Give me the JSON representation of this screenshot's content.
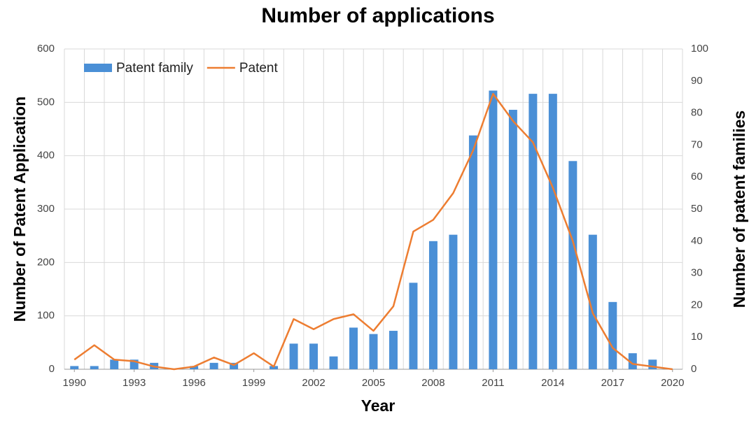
{
  "chart_data": {
    "type": "bar+line",
    "title": "Number of applications",
    "xlabel": "Year",
    "ylabel": "Number of Patent Application",
    "y2label": "Number of patent families",
    "x": [
      1990,
      1991,
      1992,
      1993,
      1994,
      1995,
      1996,
      1997,
      1998,
      1999,
      2000,
      2001,
      2002,
      2003,
      2004,
      2005,
      2006,
      2007,
      2008,
      2009,
      2010,
      2011,
      2012,
      2013,
      2014,
      2015,
      2016,
      2017,
      2018,
      2019,
      2020
    ],
    "xlim": [
      1989.5,
      2020.5
    ],
    "xticks": [
      1990,
      1993,
      1996,
      1999,
      2002,
      2005,
      2008,
      2011,
      2014,
      2017,
      2020
    ],
    "ylim": [
      0,
      600
    ],
    "yticks": [
      0,
      100,
      200,
      300,
      400,
      500,
      600
    ],
    "y2lim": [
      0,
      100
    ],
    "y2ticks": [
      0,
      10,
      20,
      30,
      40,
      50,
      60,
      70,
      80,
      90,
      100
    ],
    "grid": true,
    "legend": "top-left",
    "series": [
      {
        "name": "Patent family",
        "kind": "bar",
        "axis": "y2",
        "color": "#4a8fd6",
        "values": [
          1,
          1,
          3,
          3,
          2,
          0,
          1,
          2,
          2,
          0,
          1,
          8,
          8,
          4,
          13,
          11,
          12,
          27,
          40,
          42,
          73,
          87,
          81,
          86,
          86,
          65,
          42,
          21,
          5,
          3,
          0
        ]
      },
      {
        "name": "Patent",
        "kind": "line",
        "axis": "y",
        "color": "#ed7d31",
        "values": [
          18,
          45,
          18,
          15,
          5,
          0,
          5,
          22,
          8,
          30,
          5,
          94,
          75,
          94,
          103,
          72,
          118,
          258,
          280,
          330,
          410,
          516,
          465,
          425,
          340,
          240,
          105,
          40,
          10,
          5,
          0
        ]
      }
    ]
  }
}
